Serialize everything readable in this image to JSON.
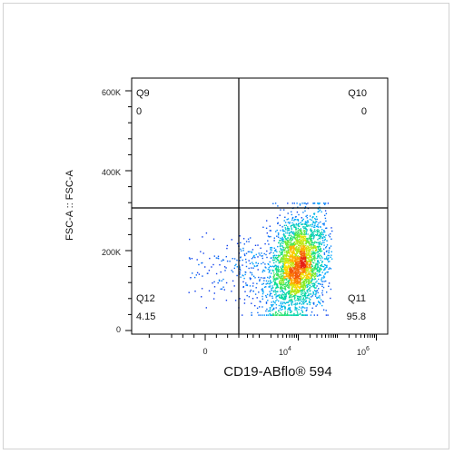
{
  "chart_data": {
    "type": "scatter",
    "subtype": "flow-cytometry-density-plot-with-quadrant-gates",
    "xlabel": "CD19-ABflo® 594",
    "ylabel": "FSC-A :: FSC-A",
    "x_axis": {
      "scale": "biexponential",
      "ticks": [
        {
          "value": 0,
          "label": "0"
        },
        {
          "value": 10000,
          "base": "10",
          "exp": "4"
        },
        {
          "value": 1000000,
          "base": "10",
          "exp": "6"
        }
      ]
    },
    "y_axis": {
      "scale": "linear",
      "ylim": [
        0,
        650000
      ],
      "ticks": [
        {
          "value": 0,
          "label": "0"
        },
        {
          "value": 200000,
          "label": "200K"
        },
        {
          "value": 400000,
          "label": "400K"
        },
        {
          "value": 600000,
          "label": "600K"
        }
      ]
    },
    "quadrants": [
      {
        "name": "Q9",
        "percent": "0",
        "position": "top-left"
      },
      {
        "name": "Q10",
        "percent": "0",
        "position": "top-right"
      },
      {
        "name": "Q11",
        "percent": "95.8",
        "position": "bottom-right"
      },
      {
        "name": "Q12",
        "percent": "4.15",
        "position": "bottom-left"
      }
    ],
    "gate_lines": {
      "x_value": 300,
      "y_value": 300000
    },
    "populations": [
      {
        "name": "main",
        "x_center": 9000,
        "y_center": 165000,
        "x_spread_decades": 0.38,
        "y_spread": 60000,
        "fraction": 0.93
      },
      {
        "name": "tail",
        "x_center": 250,
        "y_center": 150000,
        "x_spread": 350,
        "y_spread": 45000,
        "fraction": 0.07
      }
    ],
    "grid": false,
    "legend": "none"
  }
}
